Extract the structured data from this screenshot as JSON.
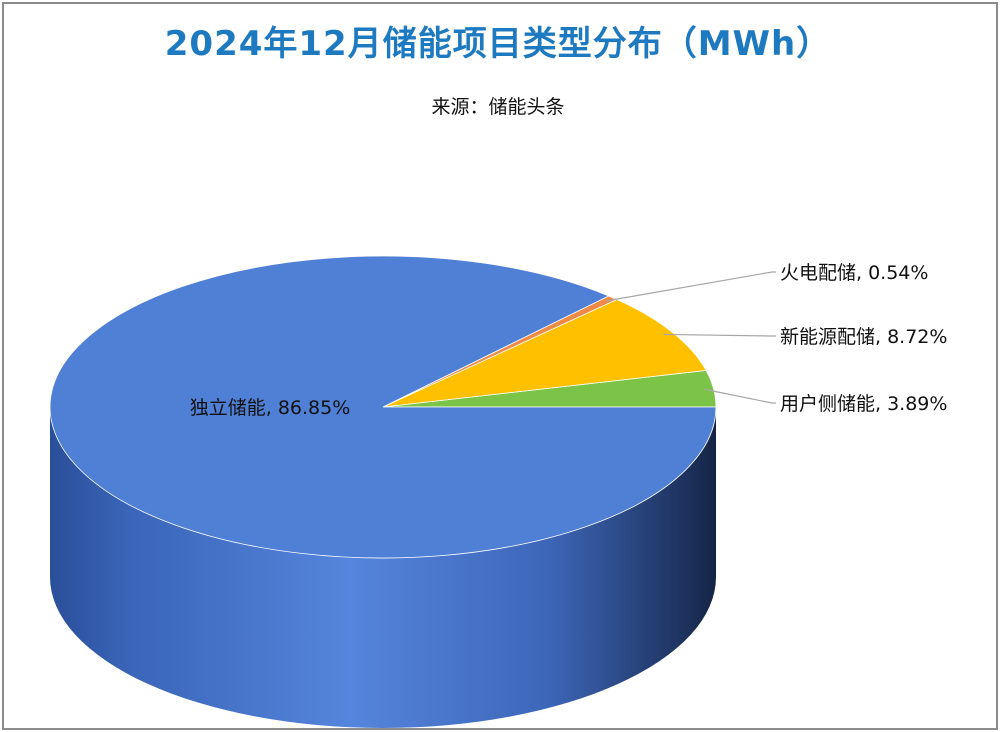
{
  "title": "2024年12月储能项目类型分布（MWh）",
  "subtitle": "来源：储能头条",
  "chart_data": {
    "type": "pie",
    "title": "2024年12月储能项目类型分布（MWh）",
    "subtitle": "来源：储能头条",
    "unit": "%",
    "slices": [
      {
        "name": "独立储能",
        "value": 86.85,
        "label": "独立储能, 86.85%",
        "color": "#4f80d6"
      },
      {
        "name": "火电配储",
        "value": 0.54,
        "label": "火电配储, 0.54%",
        "color": "#ee8a46"
      },
      {
        "name": "新能源配储",
        "value": 8.72,
        "label": "新能源配储, 8.72%",
        "color": "#ffc000"
      },
      {
        "name": "用户侧储能",
        "value": 3.89,
        "label": "用户侧储能, 3.89%",
        "color": "#7cc448"
      }
    ]
  }
}
